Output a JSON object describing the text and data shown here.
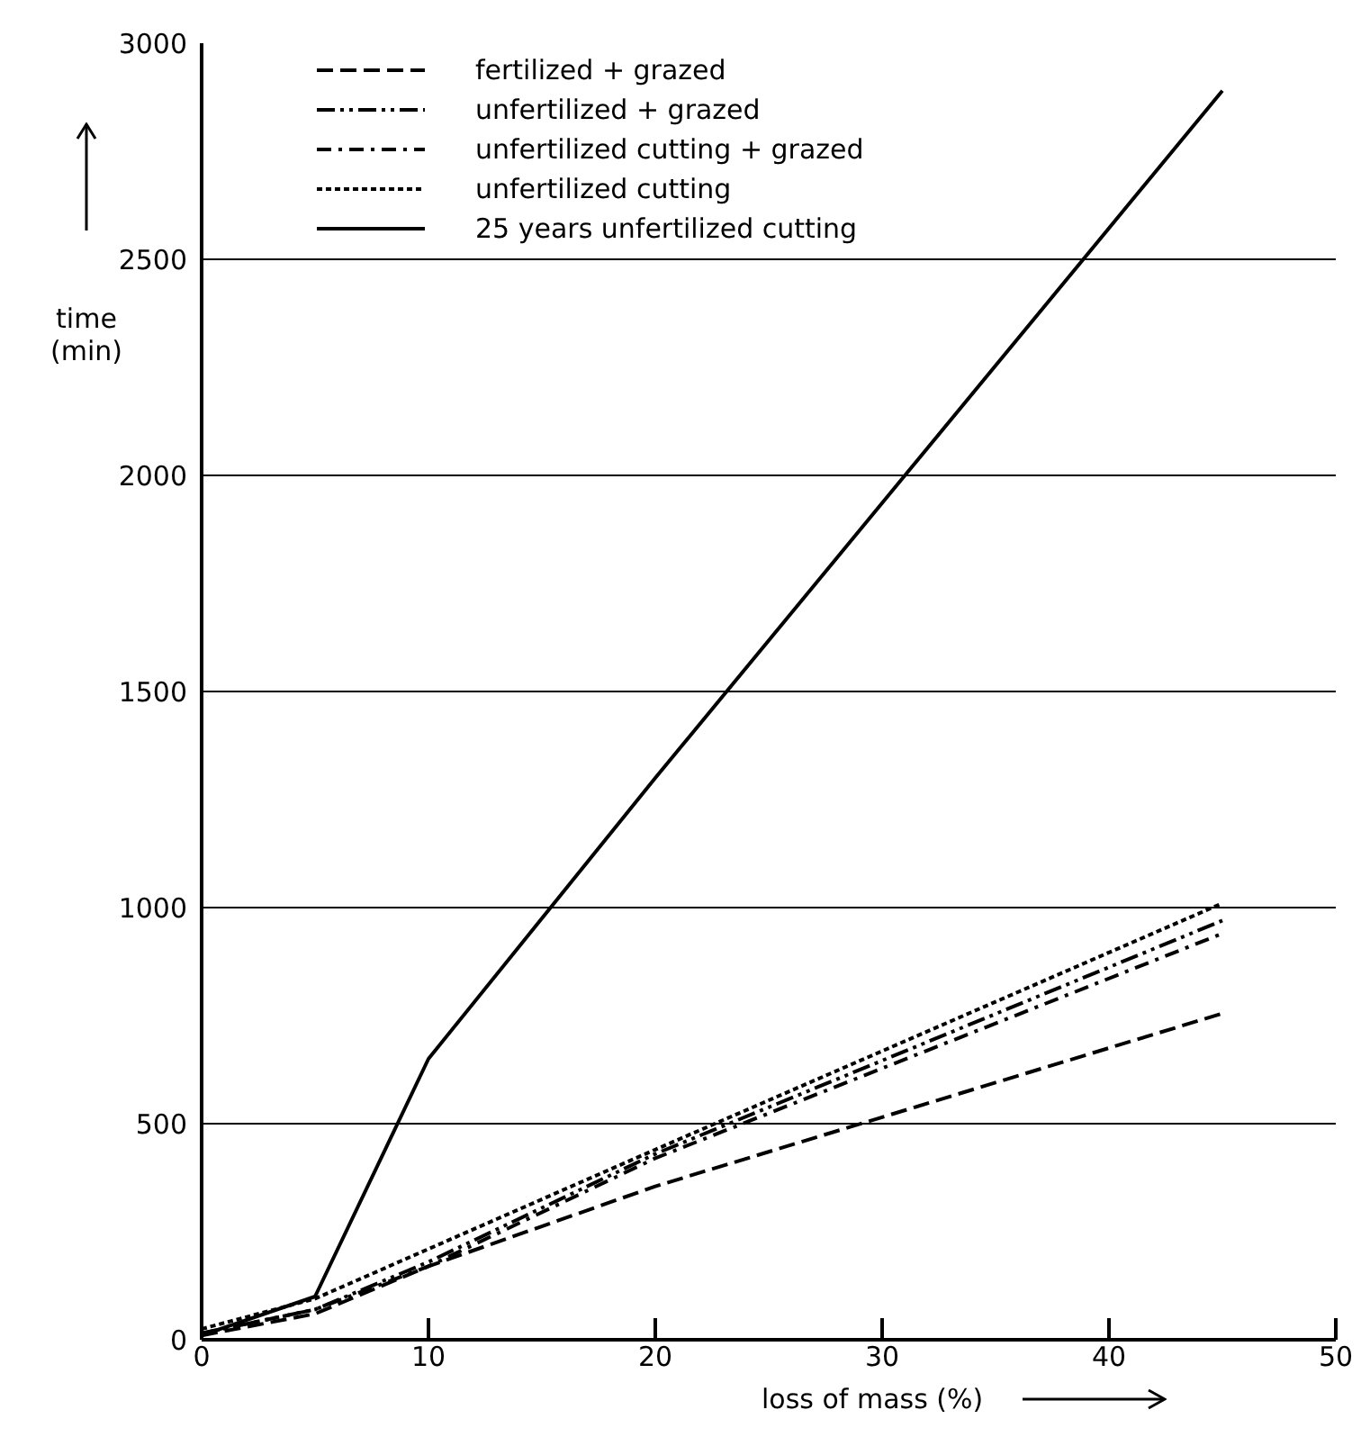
{
  "chart_data": {
    "type": "line",
    "xlabel": "loss of mass (%)",
    "ylabel": "time (min)",
    "x": [
      0,
      5,
      10,
      20,
      45
    ],
    "series": [
      {
        "name": "fertilized + grazed",
        "color": "#000000",
        "line_style": "dashed",
        "values": [
          10,
          60,
          170,
          355,
          755
        ]
      },
      {
        "name": "unfertilized + grazed",
        "color": "#000000",
        "line_style": "dashed",
        "values": [
          15,
          70,
          180,
          430,
          970
        ]
      },
      {
        "name": "unfertilized cutting + grazed",
        "color": "#000000",
        "line_style": "dashed",
        "values": [
          15,
          70,
          170,
          420,
          940
        ]
      },
      {
        "name": "unfertilized cutting",
        "color": "#000000",
        "line_style": "dotted",
        "values": [
          25,
          95,
          210,
          440,
          1010
        ]
      },
      {
        "name": "25 years unfertilized cutting",
        "color": "#000000",
        "line_style": "solid",
        "values": [
          10,
          100,
          650,
          1300,
          2890
        ]
      }
    ],
    "xlim": [
      0,
      50
    ],
    "xticks": [
      0,
      10,
      20,
      30,
      40,
      50
    ],
    "ylim": [
      0,
      3000
    ],
    "yticks": [
      0,
      500,
      1000,
      1500,
      2000,
      2500,
      3000
    ],
    "grid": "y",
    "legend": "top left",
    "marker": "none"
  }
}
